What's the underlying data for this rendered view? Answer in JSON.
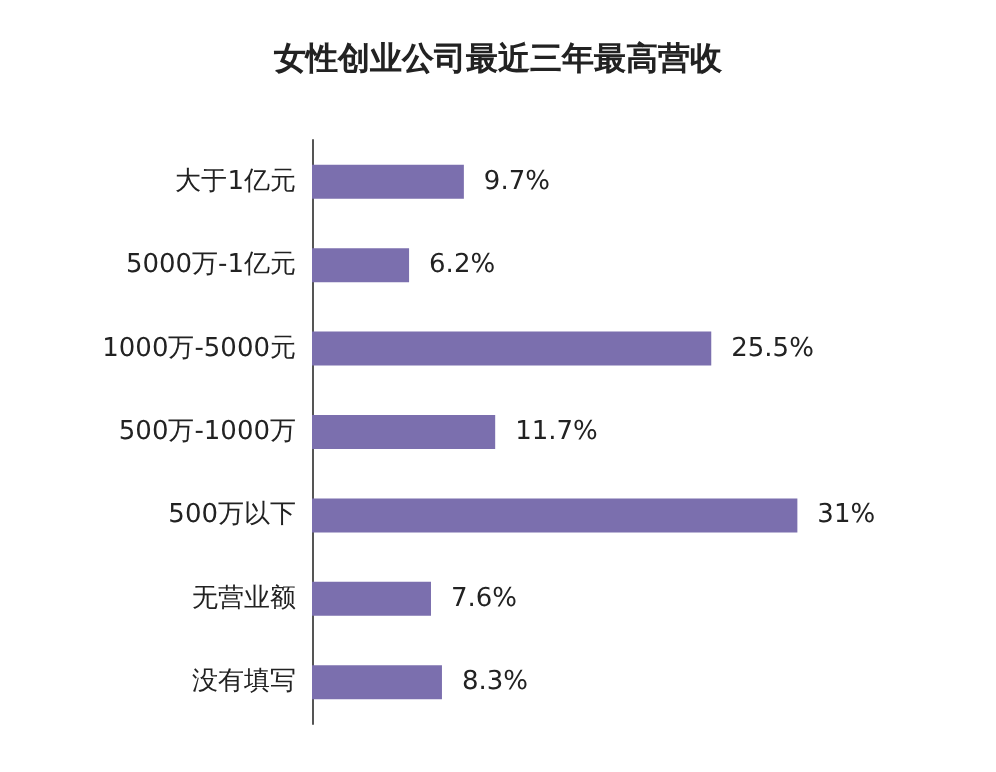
{
  "chart_data": {
    "type": "bar",
    "orientation": "horizontal",
    "title": "女性创业公司最近三年最高营收",
    "categories": [
      "大于1亿元",
      "5000万-1亿元",
      "1000万-5000元",
      "500万-1000万",
      "500万以下",
      "无营业额",
      "没有填写"
    ],
    "values": [
      9.7,
      6.2,
      25.5,
      11.7,
      31,
      7.6,
      8.3
    ],
    "value_labels": [
      "9.7%",
      "6.2%",
      "25.5%",
      "11.7%",
      "31%",
      "7.6%",
      "8.3%"
    ],
    "color": "#7b6fae"
  }
}
